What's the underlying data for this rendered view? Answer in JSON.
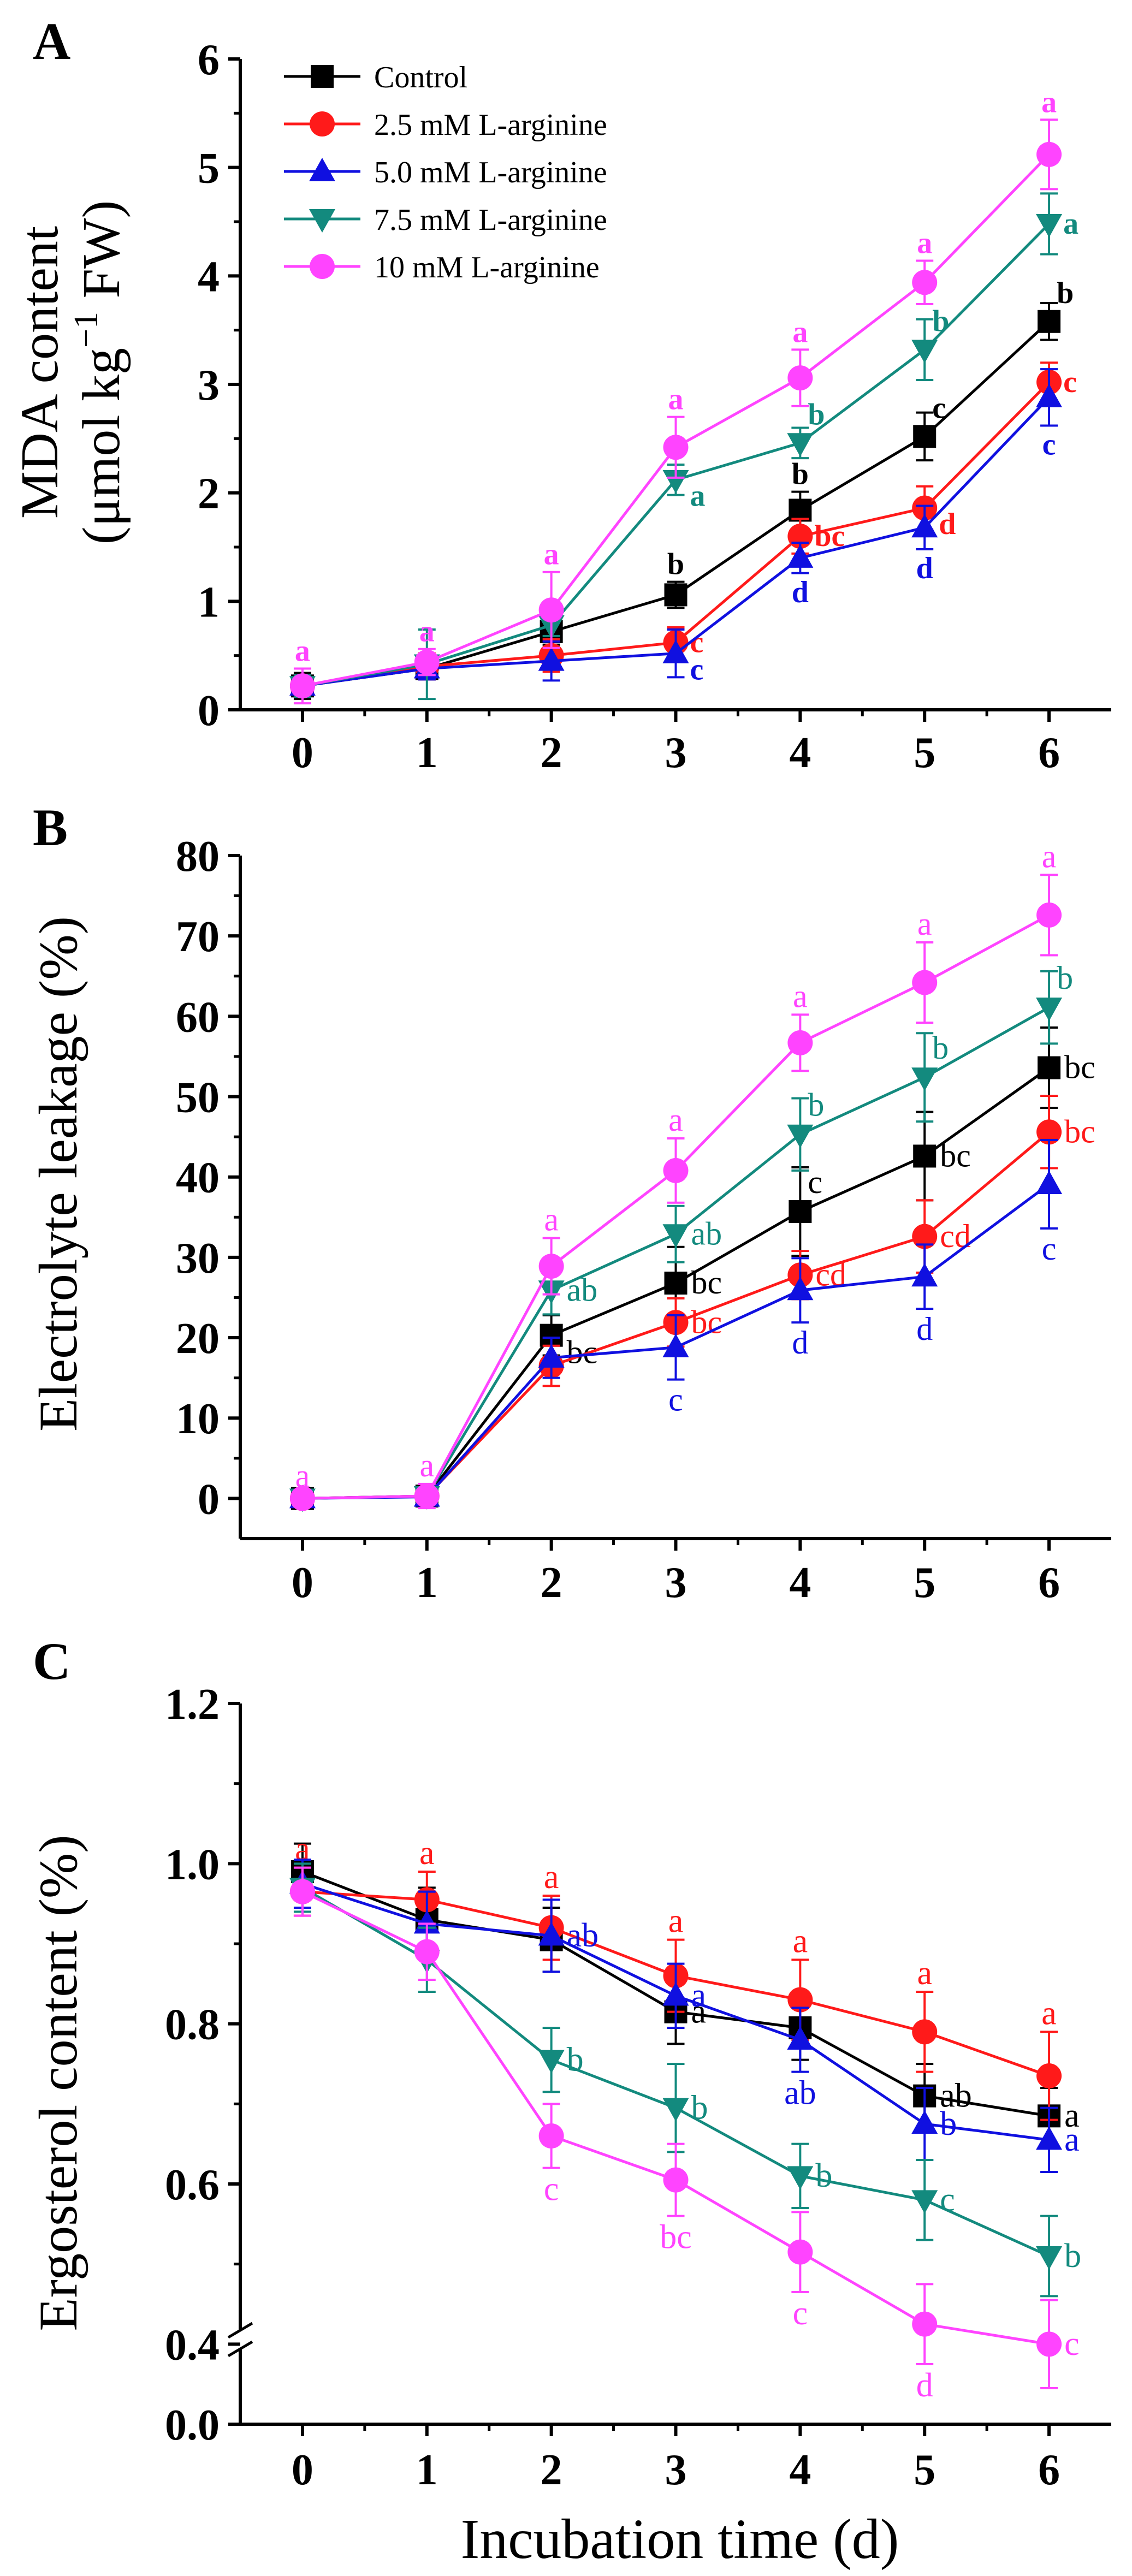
{
  "colors": {
    "Control": "#000000",
    "2.5 mM L-arginine": "#ff1a1a",
    "5.0 mM L-arginine": "#1010e0",
    "7.5 mM L-arginine": "#138a7e",
    "10 mM L-arginine": "#ff44ff"
  },
  "figure": {
    "xlabel": "Incubation time (d)"
  },
  "chart_data": [
    {
      "panel": "A",
      "type": "line",
      "ylabel_line1": "MDA content",
      "ylabel_line2_prefix": "(μmol kg",
      "ylabel_sup": "−1",
      "ylabel_line2_suffix": " FW)",
      "xlim": [
        -0.5,
        6.5
      ],
      "ylim": [
        0,
        6
      ],
      "yticks": [
        0,
        1,
        2,
        3,
        4,
        5,
        6
      ],
      "x": [
        0,
        1,
        2,
        3,
        4,
        5,
        6
      ],
      "legend": [
        "Control",
        "2.5 mM L-arginine",
        "5.0 mM L-arginine",
        "7.5 mM L-arginine",
        "10 mM L-arginine"
      ],
      "legend_position": "top-left",
      "series": [
        {
          "name": "Control",
          "marker": "square",
          "values": [
            0.22,
            0.38,
            0.72,
            1.06,
            1.84,
            2.52,
            3.58
          ],
          "errors": [
            0.12,
            0.1,
            0.12,
            0.12,
            0.17,
            0.22,
            0.17
          ],
          "labels": [
            "",
            "",
            "",
            "b",
            "b",
            "c",
            "b"
          ]
        },
        {
          "name": "2.5 mM L-arginine",
          "marker": "circle",
          "values": [
            0.22,
            0.4,
            0.5,
            0.62,
            1.6,
            1.86,
            3.02
          ],
          "errors": [
            0.1,
            0.12,
            0.15,
            0.14,
            0.16,
            0.2,
            0.18
          ],
          "labels": [
            "",
            "",
            "",
            "c",
            "bc",
            "d",
            "c"
          ]
        },
        {
          "name": "5.0 mM L-arginine",
          "marker": "triangle-up",
          "values": [
            0.22,
            0.38,
            0.45,
            0.52,
            1.4,
            1.68,
            2.88
          ],
          "errors": [
            0.1,
            0.1,
            0.18,
            0.22,
            0.14,
            0.2,
            0.26
          ],
          "labels": [
            "",
            "",
            "",
            "c",
            "d",
            "d",
            "c"
          ]
        },
        {
          "name": "7.5 mM L-arginine",
          "marker": "triangle-down",
          "values": [
            0.22,
            0.42,
            0.78,
            2.12,
            2.46,
            3.32,
            4.48
          ],
          "errors": [
            0.1,
            0.32,
            0.1,
            0.14,
            0.14,
            0.28,
            0.28
          ],
          "labels": [
            "",
            "",
            "",
            "a",
            "b",
            "b",
            "a"
          ]
        },
        {
          "name": "10 mM L-arginine",
          "marker": "circle",
          "values": [
            0.22,
            0.44,
            0.92,
            2.42,
            3.06,
            3.94,
            5.12
          ],
          "errors": [
            0.16,
            0.12,
            0.35,
            0.28,
            0.26,
            0.2,
            0.32
          ],
          "labels": [
            "a",
            "a",
            "a",
            "a",
            "a",
            "a",
            "a"
          ]
        }
      ]
    },
    {
      "panel": "B",
      "type": "line",
      "ylabel": "Electrolyte leakage (%)",
      "xlim": [
        -0.5,
        6.5
      ],
      "ylim": [
        -5,
        80
      ],
      "yticks": [
        0,
        10,
        20,
        30,
        40,
        50,
        60,
        70,
        80
      ],
      "x": [
        0,
        1,
        2,
        3,
        4,
        5,
        6
      ],
      "series": [
        {
          "name": "Control",
          "marker": "square",
          "values": [
            0,
            0.3,
            20.3,
            26.8,
            35.7,
            42.6,
            53.6
          ],
          "errors": [
            0.5,
            0.5,
            2.5,
            4.5,
            5.5,
            5.5,
            5.0
          ],
          "labels": [
            "",
            "",
            "bc",
            "bc",
            "c",
            "bc",
            "bc"
          ]
        },
        {
          "name": "2.5 mM L-arginine",
          "marker": "circle",
          "values": [
            0,
            0.3,
            16.5,
            21.9,
            27.8,
            32.6,
            45.6
          ],
          "errors": [
            0.5,
            0.5,
            2.5,
            3.0,
            3.0,
            4.5,
            4.5
          ],
          "labels": [
            "",
            "",
            "",
            "bc",
            "cd",
            "cd",
            "bc"
          ]
        },
        {
          "name": "5.0 mM L-arginine",
          "marker": "triangle-up",
          "values": [
            0,
            0.2,
            17.5,
            18.8,
            25.9,
            27.6,
            39.1
          ],
          "errors": [
            0.5,
            0.5,
            2.5,
            4.0,
            4.0,
            4.0,
            5.5
          ],
          "labels": [
            "",
            "",
            "",
            "c",
            "d",
            "d",
            "c"
          ]
        },
        {
          "name": "7.5 mM L-arginine",
          "marker": "triangle-down",
          "values": [
            0,
            0.3,
            25.9,
            32.9,
            45.3,
            52.4,
            61.1
          ],
          "errors": [
            0.5,
            0.5,
            3.0,
            3.5,
            4.5,
            5.5,
            4.5
          ],
          "labels": [
            "",
            "",
            "ab",
            "ab",
            "b",
            "b",
            "b"
          ]
        },
        {
          "name": "10 mM L-arginine",
          "marker": "circle",
          "values": [
            0,
            0.3,
            28.9,
            40.8,
            56.7,
            64.2,
            72.6
          ],
          "errors": [
            0.5,
            1.5,
            3.5,
            4.0,
            3.5,
            5.0,
            5.0
          ],
          "labels": [
            "a",
            "a",
            "a",
            "a",
            "a",
            "a",
            "a"
          ]
        }
      ]
    },
    {
      "panel": "C",
      "type": "line",
      "ylabel": "Ergosterol content (%)",
      "xlabel": "Incubation time (d)",
      "xlim": [
        -0.5,
        6.5
      ],
      "ylim": [
        0.3,
        1.2
      ],
      "axis_break": true,
      "yticks": [
        0.4,
        0.6,
        0.8,
        1.0,
        1.2
      ],
      "ytick_labels": [
        "0.4",
        "0.6",
        "0.8",
        "1.0",
        "1.2"
      ],
      "below_break_tick_label": "0.0",
      "x": [
        0,
        1,
        2,
        3,
        4,
        5,
        6
      ],
      "series": [
        {
          "name": "Control",
          "marker": "square",
          "values": [
            0.99,
            0.93,
            0.905,
            0.815,
            0.795,
            0.71,
            0.685
          ],
          "errors": [
            0.035,
            0.04,
            0.04,
            0.04,
            0.04,
            0.04,
            0.035
          ],
          "labels": [
            "",
            "",
            "",
            "a",
            "",
            "ab",
            "a"
          ]
        },
        {
          "name": "2.5 mM L-arginine",
          "marker": "circle",
          "values": [
            0.965,
            0.955,
            0.92,
            0.86,
            0.83,
            0.79,
            0.735
          ],
          "errors": [
            0.03,
            0.035,
            0.04,
            0.045,
            0.05,
            0.05,
            0.055
          ],
          "labels": [
            "a",
            "a",
            "a",
            "a",
            "a",
            "a",
            "a"
          ]
        },
        {
          "name": "5.0 mM L-arginine",
          "marker": "triangle-up",
          "values": [
            0.975,
            0.925,
            0.91,
            0.835,
            0.78,
            0.675,
            0.655
          ],
          "errors": [
            0.03,
            0.04,
            0.045,
            0.04,
            0.04,
            0.045,
            0.04
          ],
          "labels": [
            "",
            "",
            "ab",
            "a",
            "ab",
            "b",
            "a"
          ]
        },
        {
          "name": "7.5 mM L-arginine",
          "marker": "triangle-down",
          "values": [
            0.97,
            0.88,
            0.755,
            0.695,
            0.61,
            0.58,
            0.51
          ],
          "errors": [
            0.03,
            0.04,
            0.04,
            0.055,
            0.04,
            0.05,
            0.05
          ],
          "labels": [
            "",
            "",
            "b",
            "b",
            "b",
            "c",
            "b"
          ]
        },
        {
          "name": "10 mM L-arginine",
          "marker": "circle",
          "values": [
            0.965,
            0.89,
            0.66,
            0.605,
            0.515,
            0.425,
            0.4
          ],
          "errors": [
            0.03,
            0.035,
            0.04,
            0.045,
            0.05,
            0.05,
            0.055
          ],
          "labels": [
            "",
            "",
            "c",
            "bc",
            "c",
            "d",
            "c"
          ]
        }
      ]
    }
  ]
}
